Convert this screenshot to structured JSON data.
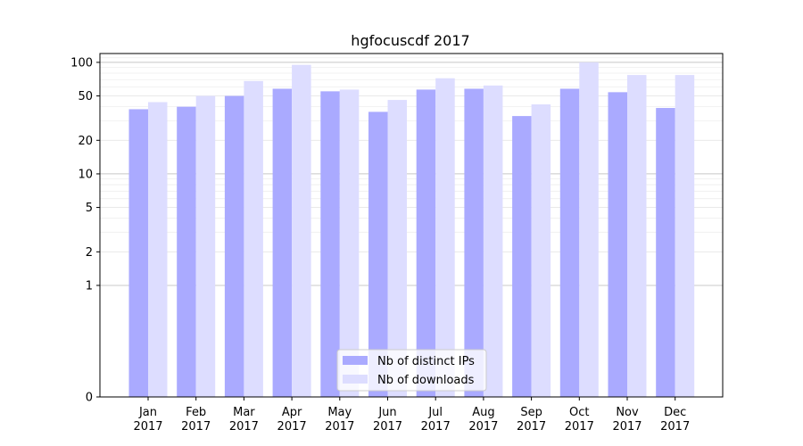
{
  "chart_data": {
    "type": "bar",
    "title": "hgfocuscdf 2017",
    "xlabel": "",
    "ylabel": "",
    "y_scale": "symlog",
    "ylim": [
      0,
      120
    ],
    "y_ticks": [
      {
        "value": 0,
        "label": "0"
      },
      {
        "value": 1,
        "label": "1"
      },
      {
        "value": 2,
        "label": "2"
      },
      {
        "value": 5,
        "label": "5"
      },
      {
        "value": 10,
        "label": "10"
      },
      {
        "value": 20,
        "label": "20"
      },
      {
        "value": 50,
        "label": "50"
      },
      {
        "value": 100,
        "label": "100"
      }
    ],
    "categories": [
      {
        "month": "Jan",
        "year": "2017"
      },
      {
        "month": "Feb",
        "year": "2017"
      },
      {
        "month": "Mar",
        "year": "2017"
      },
      {
        "month": "Apr",
        "year": "2017"
      },
      {
        "month": "May",
        "year": "2017"
      },
      {
        "month": "Jun",
        "year": "2017"
      },
      {
        "month": "Jul",
        "year": "2017"
      },
      {
        "month": "Aug",
        "year": "2017"
      },
      {
        "month": "Sep",
        "year": "2017"
      },
      {
        "month": "Oct",
        "year": "2017"
      },
      {
        "month": "Nov",
        "year": "2017"
      },
      {
        "month": "Dec",
        "year": "2017"
      }
    ],
    "series": [
      {
        "name": "Nb of distinct IPs",
        "color": "#aaaaff",
        "values": [
          38,
          40,
          50,
          58,
          55,
          36,
          57,
          58,
          33,
          58,
          54,
          39
        ]
      },
      {
        "name": "Nb of downloads",
        "color": "#ddddff",
        "values": [
          44,
          50,
          68,
          95,
          57,
          46,
          72,
          62,
          42,
          100,
          77,
          77
        ]
      }
    ],
    "grid": true,
    "legend_position": "bottom-center"
  }
}
